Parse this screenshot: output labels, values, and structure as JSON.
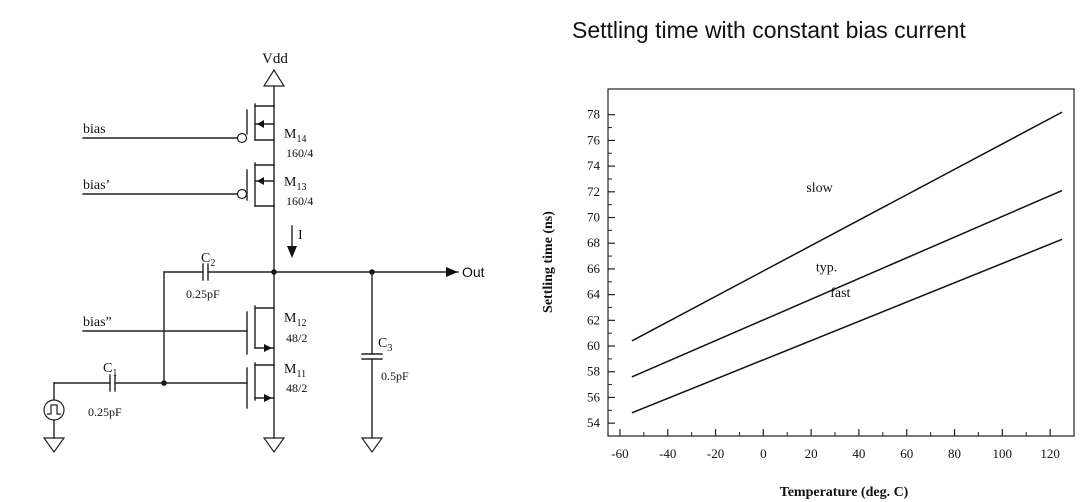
{
  "circuit": {
    "vdd": "Vdd",
    "out": "Out",
    "current": "I",
    "inputs": {
      "bias": "bias",
      "bias_prime": "bias’",
      "bias_dprime": "bias”"
    },
    "transistors": [
      {
        "id": "m14",
        "name": "M",
        "sub": "14",
        "size": "160/4"
      },
      {
        "id": "m13",
        "name": "M",
        "sub": "13",
        "size": "160/4"
      },
      {
        "id": "m12",
        "name": "M",
        "sub": "12",
        "size": "48/2"
      },
      {
        "id": "m11",
        "name": "M",
        "sub": "11",
        "size": "48/2"
      }
    ],
    "capacitors": [
      {
        "id": "c1",
        "name": "C",
        "sub": "1",
        "value": "0.25pF"
      },
      {
        "id": "c2",
        "name": "C",
        "sub": "2",
        "value": "0.25pF"
      },
      {
        "id": "c3",
        "name": "C",
        "sub": "3",
        "value": "0.5pF"
      }
    ]
  },
  "chart_title": "Settling time with constant bias current",
  "chart_data": {
    "type": "line",
    "title": "Settling time with constant bias current",
    "xlabel": "Temperature (deg. C)",
    "ylabel": "Settling time (ns)",
    "xlim": [
      -65,
      130
    ],
    "ylim": [
      53,
      80
    ],
    "xticks": [
      -60,
      -40,
      -20,
      0,
      20,
      40,
      60,
      80,
      100,
      120
    ],
    "yticks": [
      54,
      56,
      58,
      60,
      62,
      64,
      66,
      68,
      70,
      72,
      74,
      76,
      78
    ],
    "grid": false,
    "series": [
      {
        "name": "slow",
        "x": [
          -55,
          125
        ],
        "y": [
          60.4,
          78.2
        ],
        "label_at": [
          18,
          72.0
        ]
      },
      {
        "name": "typ.",
        "x": [
          -55,
          125
        ],
        "y": [
          57.6,
          72.1
        ],
        "label_at": [
          22,
          65.8
        ]
      },
      {
        "name": "fast",
        "x": [
          -55,
          125
        ],
        "y": [
          54.8,
          68.3
        ],
        "label_at": [
          28,
          63.8
        ]
      }
    ]
  }
}
